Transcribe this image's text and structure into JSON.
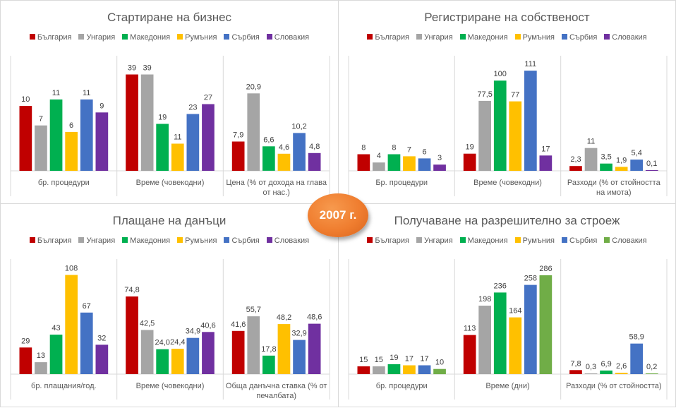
{
  "badge": {
    "label": "2007 г."
  },
  "colors": {
    "Bulgaria": "#c00000",
    "Hungary": "#a5a5a5",
    "Macedonia": "#00b050",
    "Romania": "#ffc000",
    "Serbia": "#4472c4",
    "Slovakia": "#7030a0",
    "Slovakia_alt": "#70ad47"
  },
  "chart_data": [
    {
      "type": "bar",
      "title": "Стартиране на бизнес",
      "legend_position": "top",
      "categories": [
        "бр. процедури",
        "Време (човекодни)",
        "Цена (% от дохода на глава от нас.)"
      ],
      "series": [
        {
          "name": "България",
          "color": "#c00000",
          "values": [
            10,
            39,
            7.9
          ],
          "labels": [
            "10",
            "39",
            "7,9"
          ]
        },
        {
          "name": "Унгария",
          "color": "#a5a5a5",
          "values": [
            7,
            39,
            20.9
          ],
          "labels": [
            "7",
            "39",
            "20,9"
          ]
        },
        {
          "name": "Македония",
          "color": "#00b050",
          "values": [
            11,
            19,
            6.6
          ],
          "labels": [
            "11",
            "19",
            "6,6"
          ]
        },
        {
          "name": "Румъния",
          "color": "#ffc000",
          "values": [
            6,
            11,
            4.6
          ],
          "labels": [
            "6",
            "11",
            "4,6"
          ]
        },
        {
          "name": "Сърбия",
          "color": "#4472c4",
          "values": [
            11,
            23,
            10.2
          ],
          "labels": [
            "11",
            "23",
            "10,2"
          ]
        },
        {
          "name": "Словакия",
          "color": "#7030a0",
          "values": [
            9,
            27,
            4.8
          ],
          "labels": [
            "9",
            "27",
            "4,8"
          ]
        }
      ],
      "category_max": [
        16,
        42,
        28
      ]
    },
    {
      "type": "bar",
      "title": "Регистриране на собственост",
      "legend_position": "top",
      "categories": [
        "Бр. процедури",
        "Време (човекодни)",
        "Разходи (% от стойността на имота)"
      ],
      "series": [
        {
          "name": "България",
          "color": "#c00000",
          "values": [
            8,
            19,
            2.3
          ],
          "labels": [
            "8",
            "19",
            "2,3"
          ]
        },
        {
          "name": "Унгария",
          "color": "#a5a5a5",
          "values": [
            4,
            77.5,
            11
          ],
          "labels": [
            "4",
            "77,5",
            "11"
          ]
        },
        {
          "name": "Македония",
          "color": "#00b050",
          "values": [
            8,
            100,
            3.5
          ],
          "labels": [
            "8",
            "100",
            "3,5"
          ]
        },
        {
          "name": "Румъния",
          "color": "#ffc000",
          "values": [
            7,
            77,
            1.9
          ],
          "labels": [
            "7",
            "77",
            "1,9"
          ]
        },
        {
          "name": "Сърбия",
          "color": "#4472c4",
          "values": [
            6,
            111,
            5.4
          ],
          "labels": [
            "6",
            "111",
            "5,4"
          ]
        },
        {
          "name": "Словакия",
          "color": "#7030a0",
          "values": [
            3,
            17,
            0.1
          ],
          "labels": [
            "3",
            "17",
            "0,1"
          ]
        }
      ],
      "category_max": [
        50,
        115,
        50
      ]
    },
    {
      "type": "bar",
      "title": "Плащане на данъци",
      "legend_position": "top",
      "categories": [
        "бр. плащания/год.",
        "Време (човекодни)",
        "Обща данъчна ставка (% от печалбата)"
      ],
      "series": [
        {
          "name": "България",
          "color": "#c00000",
          "values": [
            29,
            74.8,
            41.6
          ],
          "labels": [
            "29",
            "74,8",
            "41,6"
          ]
        },
        {
          "name": "Унгария",
          "color": "#a5a5a5",
          "values": [
            13,
            42.5,
            55.7
          ],
          "labels": [
            "13",
            "42,5",
            "55,7"
          ]
        },
        {
          "name": "Македония",
          "color": "#00b050",
          "values": [
            43,
            24.0,
            17.8
          ],
          "labels": [
            "43",
            "24,0",
            "17,8"
          ]
        },
        {
          "name": "Румъния",
          "color": "#ffc000",
          "values": [
            108,
            24.4,
            48.2
          ],
          "labels": [
            "108",
            "24,4",
            "48,2"
          ]
        },
        {
          "name": "Сърбия",
          "color": "#4472c4",
          "values": [
            67,
            34.9,
            32.9
          ],
          "labels": [
            "67",
            "34,9",
            "32,9"
          ]
        },
        {
          "name": "Словакия",
          "color": "#7030a0",
          "values": [
            32,
            40.6,
            48.6
          ],
          "labels": [
            "32",
            "40,6",
            "48,6"
          ]
        }
      ],
      "category_max": [
        113,
        100,
        100
      ]
    },
    {
      "type": "bar",
      "title": "Получаване на разрешително за строеж",
      "legend_position": "top",
      "categories": [
        "бр. процедури",
        "Време (дни)",
        "Разходи (% от стойността)"
      ],
      "series": [
        {
          "name": "България",
          "color": "#c00000",
          "values": [
            15,
            113,
            7.8
          ],
          "labels": [
            "15",
            "113",
            "7,8"
          ]
        },
        {
          "name": "Унгария",
          "color": "#a5a5a5",
          "values": [
            15,
            198,
            0.3
          ],
          "labels": [
            "15",
            "198",
            "0,3"
          ]
        },
        {
          "name": "Македония",
          "color": "#00b050",
          "values": [
            19,
            236,
            6.9
          ],
          "labels": [
            "19",
            "236",
            "6,9"
          ]
        },
        {
          "name": "Румъния",
          "color": "#ffc000",
          "values": [
            17,
            164,
            2.6
          ],
          "labels": [
            "17",
            "164",
            "2,6"
          ]
        },
        {
          "name": "Сърбия",
          "color": "#4472c4",
          "values": [
            17,
            258,
            58.9
          ],
          "labels": [
            "17",
            "258",
            "58,9"
          ]
        },
        {
          "name": "Словакия",
          "color": "#70ad47",
          "values": [
            10,
            286,
            0.2
          ],
          "labels": [
            "10",
            "286",
            "0,2"
          ]
        }
      ],
      "category_max": [
        200,
        300,
        200
      ]
    }
  ]
}
